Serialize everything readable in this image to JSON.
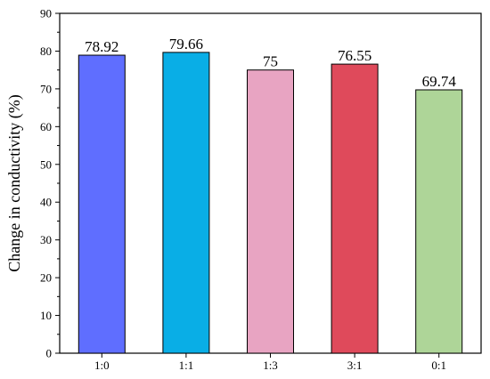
{
  "chart_data": {
    "type": "bar",
    "title": "",
    "xlabel": "",
    "ylabel": "Change in conductivity (%)",
    "categories": [
      "1:0",
      "1:1",
      "1:3",
      "3:1",
      "0:1"
    ],
    "values": [
      78.92,
      79.66,
      75,
      76.55,
      69.74
    ],
    "data_labels": [
      "78.92",
      "79.66",
      "75",
      "76.55",
      "69.74"
    ],
    "colors": [
      "#5f6eff",
      "#09aee6",
      "#e8a4c2",
      "#df4a5b",
      "#aed598"
    ],
    "ylim": [
      0,
      90
    ],
    "yticks": [
      0,
      10,
      20,
      30,
      40,
      50,
      60,
      70,
      80,
      90
    ],
    "grid": false,
    "legend": "none"
  }
}
